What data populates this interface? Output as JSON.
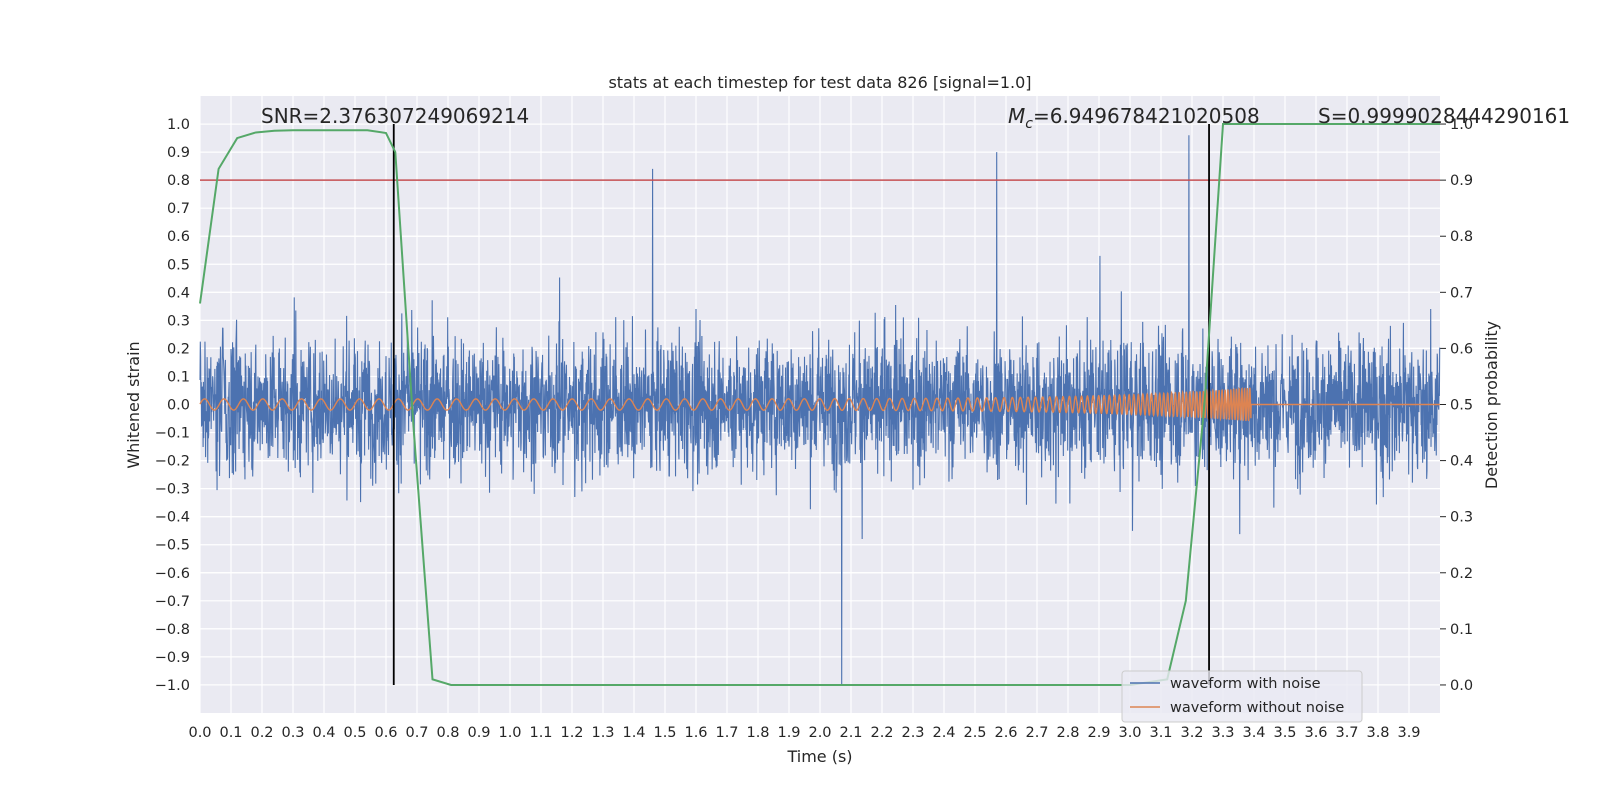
{
  "chart_data": {
    "type": "line",
    "title": "stats at each timestep for test data 826 [signal=1.0]",
    "xlabel": "Time (s)",
    "ylabel": "Whitened strain",
    "y2label": "Detection probability",
    "xlim": [
      0.0,
      4.0
    ],
    "ylim": [
      -1.1,
      1.1
    ],
    "y2lim": [
      -0.05,
      1.05
    ],
    "x_ticks": [
      "0.0",
      "0.1",
      "0.2",
      "0.3",
      "0.4",
      "0.5",
      "0.6",
      "0.7",
      "0.8",
      "0.9",
      "1.0",
      "1.1",
      "1.2",
      "1.3",
      "1.4",
      "1.5",
      "1.6",
      "1.7",
      "1.8",
      "1.9",
      "2.0",
      "2.1",
      "2.2",
      "2.3",
      "2.4",
      "2.5",
      "2.6",
      "2.7",
      "2.8",
      "2.9",
      "3.0",
      "3.1",
      "3.2",
      "3.3",
      "3.4",
      "3.5",
      "3.6",
      "3.7",
      "3.8",
      "3.9"
    ],
    "y_ticks": [
      "−1.0",
      "−0.9",
      "−0.8",
      "−0.7",
      "−0.6",
      "−0.5",
      "−0.4",
      "−0.3",
      "−0.2",
      "−0.1",
      "0.0",
      "0.1",
      "0.2",
      "0.3",
      "0.4",
      "0.5",
      "0.6",
      "0.7",
      "0.8",
      "0.9",
      "1.0"
    ],
    "y2_ticks": [
      "0.0",
      "0.1",
      "0.2",
      "0.3",
      "0.4",
      "0.5",
      "0.6",
      "0.7",
      "0.8",
      "0.9",
      "1.0"
    ],
    "grid": true,
    "legend_position": "bottom-right",
    "annotations": {
      "snr": "SNR=2.376307249069214",
      "mc_symbol": "M",
      "mc_sub": "c",
      "mc_value": "=6.949678421020508",
      "s": "S=0.9999028444290161"
    },
    "series": [
      {
        "name": "waveform with noise",
        "color": "#4c72b0",
        "axis": "left",
        "description": "whitened noisy strain, amplitude mostly within ±0.6, peaks near 0.96 at t≈3.19 and −1.0 at t≈2.07"
      },
      {
        "name": "waveform without noise",
        "color": "#dd8452",
        "axis": "left",
        "chirp": {
          "start_time": 0.0,
          "merger_time": 3.39,
          "start_amplitude": 0.02,
          "peak_amplitude": 0.06,
          "start_freq_hz": 16,
          "end_freq_hz": 120
        }
      },
      {
        "color": "#55a868",
        "axis": "right",
        "x": [
          0.0,
          0.06,
          0.12,
          0.18,
          0.24,
          0.3,
          0.36,
          0.42,
          0.48,
          0.54,
          0.6,
          0.63,
          0.69,
          0.75,
          0.81,
          0.87,
          1.0,
          2.0,
          3.0,
          3.12,
          3.18,
          3.24,
          3.3,
          3.36,
          3.5,
          4.0
        ],
        "values": [
          0.68,
          0.92,
          0.975,
          0.985,
          0.988,
          0.989,
          0.989,
          0.989,
          0.989,
          0.989,
          0.984,
          0.95,
          0.45,
          0.01,
          0.0,
          0.0,
          0.0,
          0.0,
          0.0,
          0.01,
          0.15,
          0.5,
          1.0,
          1.0,
          1.0,
          1.0
        ]
      }
    ],
    "threshold": {
      "axis": "right",
      "value": 0.9,
      "color": "#c44e52"
    },
    "vertical_lines": [
      {
        "x": 0.625,
        "ymin": -1.0,
        "ymax": 1.0
      },
      {
        "x": 3.255,
        "ymin": -1.0,
        "ymax": 1.0
      }
    ]
  }
}
